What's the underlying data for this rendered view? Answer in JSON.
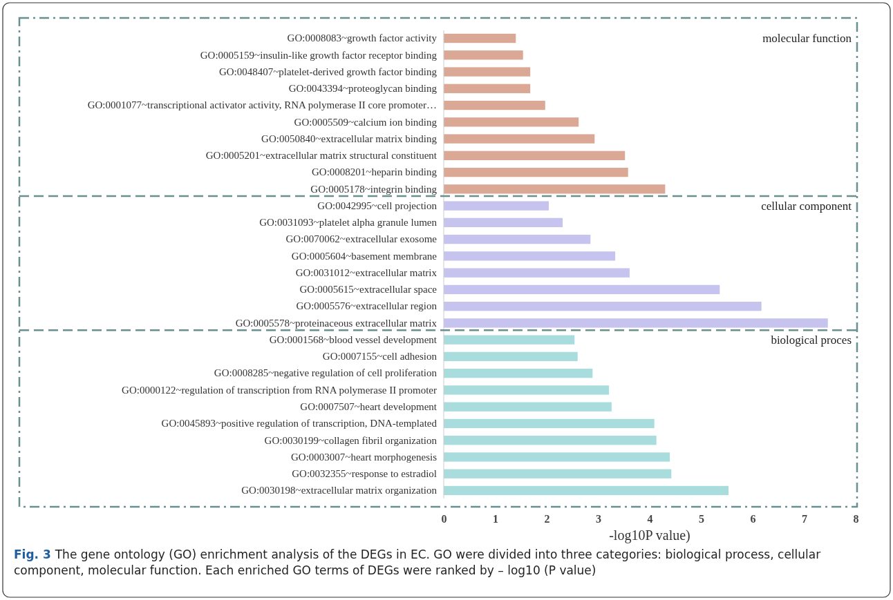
{
  "chart_data": {
    "type": "bar",
    "orientation": "horizontal",
    "xlabel": "-log10P value)",
    "xlim": [
      0,
      8
    ],
    "xticks": [
      0,
      1,
      2,
      3,
      4,
      5,
      6,
      7,
      8
    ],
    "categories": [
      "GO:0008083~growth factor activity",
      "GO:0005159~insulin-like growth factor receptor binding",
      "GO:0048407~platelet-derived growth factor binding",
      "GO:0043394~proteoglycan binding",
      "GO:0001077~transcriptional activator activity, RNA polymerase II core promoter…",
      "GO:0005509~calcium ion binding",
      "GO:0050840~extracellular matrix binding",
      "GO:0005201~extracellular matrix structural constituent",
      "GO:0008201~heparin binding",
      "GO:0005178~integrin binding",
      "GO:0042995~cell projection",
      "GO:0031093~platelet alpha granule lumen",
      "GO:0070062~extracellular exosome",
      "GO:0005604~basement membrane",
      "GO:0031012~extracellular matrix",
      "GO:0005615~extracellular space",
      "GO:0005576~extracellular region",
      "GO:0005578~proteinaceous extracellular matrix",
      "GO:0001568~blood vessel development",
      "GO:0007155~cell adhesion",
      "GO:0008285~negative regulation of cell proliferation",
      "GO:0000122~regulation of transcription from RNA polymerase II promoter",
      "GO:0007507~heart development",
      "GO:0045893~positive regulation of transcription, DNA-templated",
      "GO:0030199~collagen fibril organization",
      "GO:0003007~heart morphogenesis",
      "GO:0032355~response to estradiol",
      "GO:0030198~extracellular matrix organization"
    ],
    "values": [
      1.4,
      1.54,
      1.68,
      1.68,
      1.97,
      2.62,
      2.93,
      3.52,
      3.58,
      4.3,
      2.04,
      2.31,
      2.85,
      3.33,
      3.61,
      5.36,
      6.17,
      7.46,
      2.54,
      2.6,
      2.89,
      3.21,
      3.26,
      4.09,
      4.13,
      4.39,
      4.42,
      5.53
    ],
    "colors": [
      "#dba896",
      "#dba896",
      "#dba896",
      "#dba896",
      "#dba896",
      "#dba896",
      "#dba896",
      "#dba896",
      "#dba896",
      "#dba896",
      "#c6c4ee",
      "#c6c4ee",
      "#c6c4ee",
      "#c6c4ee",
      "#c6c4ee",
      "#c6c4ee",
      "#c6c4ee",
      "#c6c4ee",
      "#a9dcdc",
      "#a9dcdc",
      "#a9dcdc",
      "#a9dcdc",
      "#a9dcdc",
      "#a9dcdc",
      "#a9dcdc",
      "#a9dcdc",
      "#a9dcdc",
      "#a9dcdc"
    ],
    "annotations": [
      "molecular function",
      "cellular component",
      "biological proces",
      "Fig. 3",
      "The gene ontology (GO) enrichment analysis of the DEGs in EC. GO were divided into three categories: biological process, cellular component, molecular function. Each enriched GO terms of DEGs were ranked by – log10 (P value)"
    ]
  }
}
